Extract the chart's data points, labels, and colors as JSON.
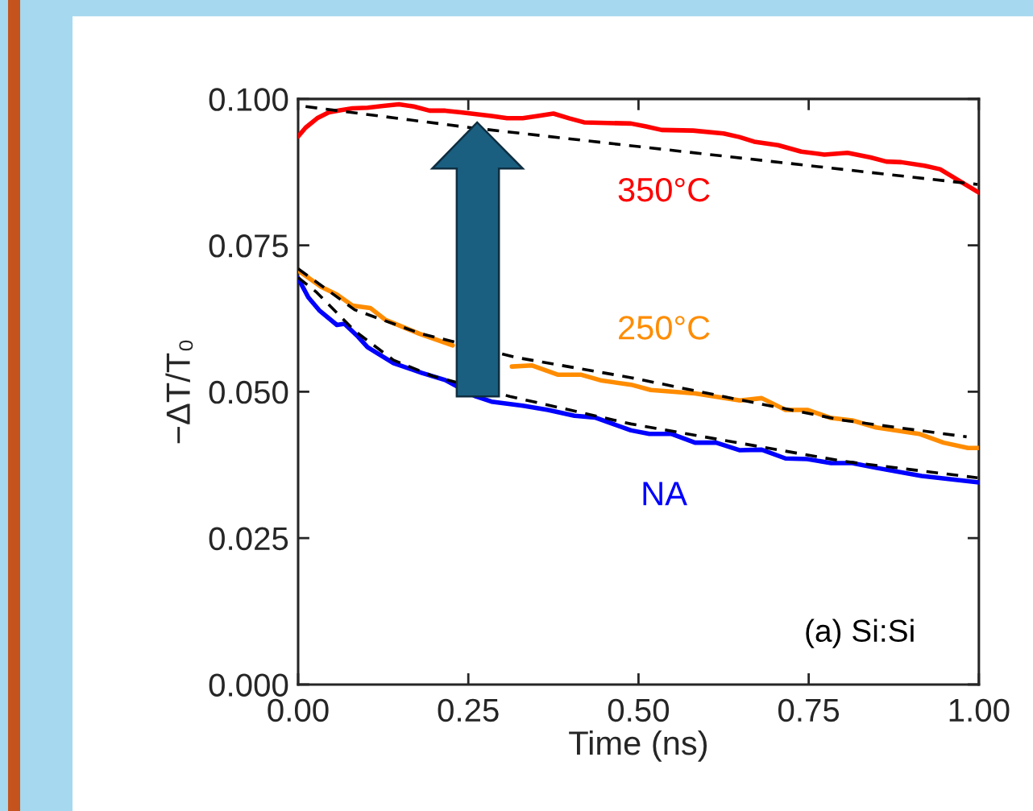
{
  "chart_data": {
    "type": "line",
    "xlabel": "Time (ns)",
    "ylabel": "−ΔT/T₀",
    "xlim": [
      0,
      1
    ],
    "xticks": [
      {
        "value": 0,
        "label": "0.00"
      },
      {
        "value": 0.25,
        "label": "0.25"
      },
      {
        "value": 0.5,
        "label": "0.50"
      },
      {
        "value": 0.75,
        "label": "0.75"
      },
      {
        "value": 1,
        "label": "1.00"
      }
    ],
    "ylim": [
      0,
      0.1
    ],
    "yticks": [
      {
        "value": 0,
        "label": "0.000"
      },
      {
        "value": 0.025,
        "label": "0.025"
      },
      {
        "value": 0.05,
        "label": "0.050"
      },
      {
        "value": 0.075,
        "label": "0.075"
      },
      {
        "value": 0.1,
        "label": "0.100"
      }
    ],
    "annotations": [
      "(a) Si:Si"
    ],
    "series": [
      {
        "name": "350°C",
        "color": "#ff0000",
        "line_style": "solid",
        "x": [
          0.0,
          0.011,
          0.028,
          0.045,
          0.063,
          0.08,
          0.102,
          0.125,
          0.148,
          0.17,
          0.193,
          0.216,
          0.239,
          0.284,
          0.307,
          0.33,
          0.352,
          0.375,
          0.398,
          0.42,
          0.489,
          0.511,
          0.534,
          0.58,
          0.625,
          0.648,
          0.67,
          0.705,
          0.739,
          0.773,
          0.807,
          0.841,
          0.864,
          0.886,
          0.92,
          0.943,
          1.0
        ],
        "values": [
          0.0936,
          0.0951,
          0.0967,
          0.0977,
          0.0981,
          0.0984,
          0.0985,
          0.0988,
          0.0991,
          0.0987,
          0.098,
          0.098,
          0.0977,
          0.0971,
          0.0967,
          0.0967,
          0.0971,
          0.0975,
          0.0967,
          0.096,
          0.0958,
          0.0953,
          0.0947,
          0.0946,
          0.0941,
          0.0935,
          0.0927,
          0.0921,
          0.091,
          0.0905,
          0.0908,
          0.09,
          0.0893,
          0.0892,
          0.0886,
          0.088,
          0.084
        ]
      },
      {
        "name": "250°C",
        "color": "#ff8c00",
        "line_style": "solid",
        "x": [
          0.0,
          0.034,
          0.057,
          0.08,
          0.106,
          0.128,
          0.178,
          0.227,
          0.261,
          0.314,
          0.343,
          0.382,
          0.416,
          0.446,
          0.489,
          0.518,
          0.583,
          0.649,
          0.681,
          0.716,
          0.748,
          0.783,
          0.814,
          0.849,
          0.912,
          0.948,
          0.984,
          1.0
        ],
        "values": [
          0.0707,
          0.0679,
          0.0666,
          0.0647,
          0.0643,
          0.0623,
          0.0599,
          0.0579,
          null,
          0.0543,
          0.0545,
          0.0529,
          0.0529,
          0.0519,
          0.0512,
          0.0503,
          0.0497,
          0.0485,
          0.0489,
          0.0469,
          0.0469,
          0.0455,
          0.0451,
          0.0439,
          0.0428,
          0.0413,
          0.0404,
          0.0404
        ]
      },
      {
        "name": "NA",
        "color": "#0000ff",
        "line_style": "solid",
        "x": [
          0.0,
          0.015,
          0.031,
          0.057,
          0.068,
          0.088,
          0.102,
          0.14,
          0.182,
          0.216,
          0.261,
          0.284,
          0.33,
          0.367,
          0.406,
          0.436,
          0.489,
          0.516,
          0.548,
          0.583,
          0.614,
          0.649,
          0.681,
          0.716,
          0.748,
          0.783,
          0.814,
          0.849,
          0.916,
          1.0
        ],
        "values": [
          0.0694,
          0.0661,
          0.0639,
          0.0614,
          0.0616,
          0.0594,
          0.0576,
          0.0549,
          0.0532,
          0.052,
          0.0492,
          0.0483,
          0.0476,
          0.0469,
          0.0459,
          0.0456,
          0.0434,
          0.0428,
          0.0428,
          0.0413,
          0.0413,
          0.04,
          0.0401,
          0.0386,
          0.0385,
          0.0378,
          0.0378,
          0.037,
          0.0356,
          0.0345
        ]
      },
      {
        "color": "#000000",
        "line_style": "dashed",
        "x": [
          0.011,
          0.253,
          0.505,
          0.998
        ],
        "values": [
          0.0987,
          0.0951,
          0.0918,
          0.0854
        ]
      },
      {
        "color": "#000000",
        "line_style": "dashed",
        "x": [
          0.0,
          0.083,
          0.178,
          0.318,
          0.489,
          0.645,
          0.802,
          0.982
        ],
        "values": [
          0.071,
          0.064,
          0.06,
          0.0559,
          0.0524,
          0.0487,
          0.0451,
          0.0423
        ]
      },
      {
        "color": "#000000",
        "line_style": "dashed",
        "x": [
          0.0,
          0.026,
          0.083,
          0.14,
          0.197,
          0.311,
          0.489,
          0.645,
          0.802,
          0.998
        ],
        "values": [
          0.0695,
          0.0671,
          0.0604,
          0.0554,
          0.0527,
          0.0492,
          0.0445,
          0.0413,
          0.0381,
          0.0353
        ]
      }
    ]
  }
}
